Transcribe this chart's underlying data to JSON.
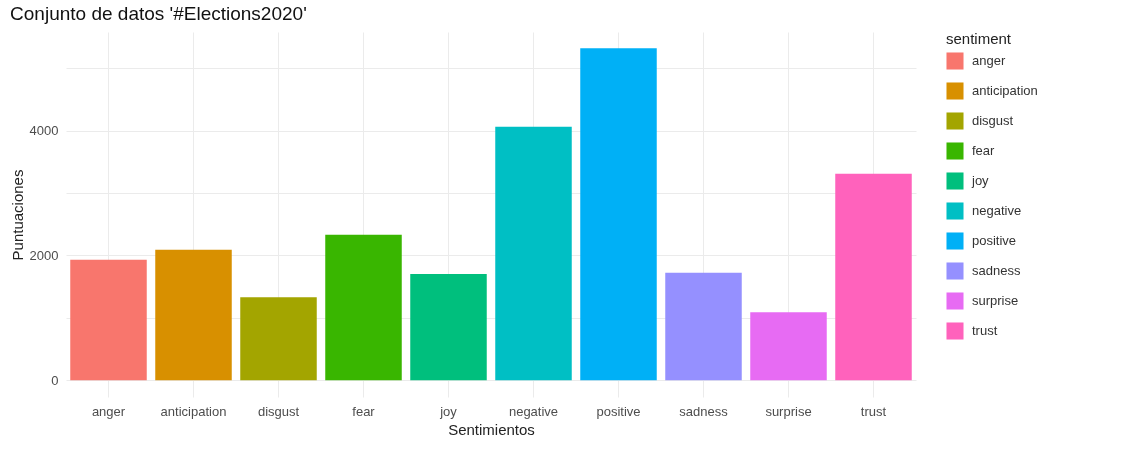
{
  "chart_data": {
    "type": "bar",
    "title": "Conjunto de datos '#Elections2020'",
    "xlabel": "Sentimientos",
    "ylabel": "Puntuaciones",
    "legend_title": "sentiment",
    "categories": [
      "anger",
      "anticipation",
      "disgust",
      "fear",
      "joy",
      "negative",
      "positive",
      "sadness",
      "surprise",
      "trust"
    ],
    "series": [
      {
        "name": "anger",
        "color": "#f8766d",
        "values": [
          1930,
          null,
          null,
          null,
          null,
          null,
          null,
          null,
          null,
          null
        ]
      },
      {
        "name": "anticipation",
        "color": "#d89000",
        "values": [
          null,
          2090,
          null,
          null,
          null,
          null,
          null,
          null,
          null,
          null
        ]
      },
      {
        "name": "disgust",
        "color": "#a3a500",
        "values": [
          null,
          null,
          1330,
          null,
          null,
          null,
          null,
          null,
          null,
          null
        ]
      },
      {
        "name": "fear",
        "color": "#39b600",
        "values": [
          null,
          null,
          null,
          2330,
          null,
          null,
          null,
          null,
          null,
          null
        ]
      },
      {
        "name": "joy",
        "color": "#00bf7d",
        "values": [
          null,
          null,
          null,
          null,
          1700,
          null,
          null,
          null,
          null,
          null
        ]
      },
      {
        "name": "negative",
        "color": "#00bfc4",
        "values": [
          null,
          null,
          null,
          null,
          null,
          4060,
          null,
          null,
          null,
          null
        ]
      },
      {
        "name": "positive",
        "color": "#00b0f6",
        "values": [
          null,
          null,
          null,
          null,
          null,
          null,
          5320,
          null,
          null,
          null
        ]
      },
      {
        "name": "sadness",
        "color": "#9590ff",
        "values": [
          null,
          null,
          null,
          null,
          null,
          null,
          null,
          1720,
          null,
          null
        ]
      },
      {
        "name": "surprise",
        "color": "#e76bf3",
        "values": [
          null,
          null,
          null,
          null,
          null,
          null,
          null,
          null,
          1090,
          null
        ]
      },
      {
        "name": "trust",
        "color": "#ff62bc",
        "values": [
          null,
          null,
          null,
          null,
          null,
          null,
          null,
          null,
          null,
          3310
        ]
      }
    ],
    "ylim": [
      -270,
      5580
    ],
    "yticks": [
      0,
      {
        "value": 1000,
        "label": null
      },
      2000,
      {
        "value": 3000,
        "label": null
      },
      4000,
      {
        "value": 5000,
        "label": null
      }
    ],
    "grid": true,
    "legend": "right"
  }
}
